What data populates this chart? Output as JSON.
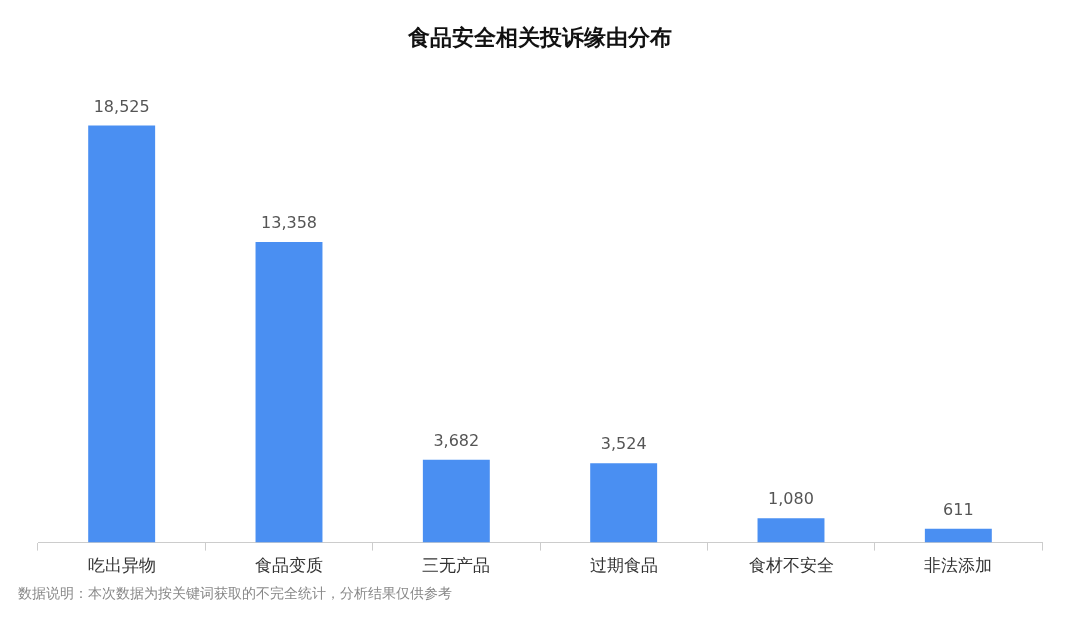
{
  "chart_data": {
    "type": "bar",
    "title": "食品安全相关投诉缘由分布",
    "categories": [
      "吃出异物",
      "食品变质",
      "三无产品",
      "过期食品",
      "食材不安全",
      "非法添加"
    ],
    "values": [
      18525,
      13358,
      3682,
      3524,
      1080,
      611
    ],
    "value_labels": [
      "18,525",
      "13,358",
      "3,682",
      "3,524",
      "1,080",
      "611"
    ],
    "color": "#4a8ff2",
    "grid": false,
    "legend": false,
    "annotations": [
      "数据说明：本次数据为按关键词获取的不完全统计，分析结果仅供参考"
    ]
  }
}
